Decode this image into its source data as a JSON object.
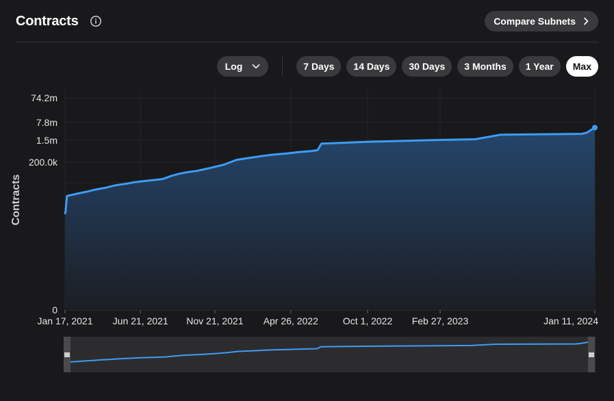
{
  "header": {
    "title": "Contracts",
    "compare_label": "Compare Subnets"
  },
  "controls": {
    "scale_selected": "Log",
    "ranges": [
      "7 Days",
      "14 Days",
      "30 Days",
      "3 Months",
      "1 Year",
      "Max"
    ],
    "active_range": "Max"
  },
  "colors": {
    "background": "#19191b",
    "line": "#3d9df6",
    "area_top": "#24466c",
    "area_bottom": "#1c1e24",
    "pill": "#3a3a3d",
    "pill_active": "#ffffff"
  },
  "chart_data": {
    "type": "area",
    "scale": "log",
    "ylabel": "Contracts",
    "y_tick_labels": [
      "74.2m",
      "7.8m",
      "1.5m",
      "200.0k",
      "0"
    ],
    "y_tick_values": [
      74200000,
      7800000,
      1500000,
      200000,
      0
    ],
    "x_tick_labels": [
      "Jan 17, 2021",
      "Jun 21, 2021",
      "Nov 21, 2021",
      "Apr 26, 2022",
      "Oct 1, 2022",
      "Feb 27, 2023",
      "Jan 11, 2024"
    ],
    "x_tick_dates": [
      "2021-01-17",
      "2021-06-21",
      "2021-11-21",
      "2022-04-26",
      "2022-10-01",
      "2023-02-27",
      "2024-01-11"
    ],
    "grid": true,
    "series": [
      {
        "x": [
          "2021-01-17",
          "2021-01-18",
          "2021-01-21",
          "2021-02-01",
          "2021-02-15",
          "2021-03-01",
          "2021-03-20",
          "2021-04-10",
          "2021-05-01",
          "2021-05-20",
          "2021-06-10",
          "2021-06-21",
          "2021-07-15",
          "2021-08-05",
          "2021-08-25",
          "2021-09-10",
          "2021-09-25",
          "2021-10-15",
          "2021-11-05",
          "2021-11-21",
          "2021-12-10",
          "2022-01-05",
          "2022-02-01",
          "2022-03-01",
          "2022-03-20",
          "2022-04-20",
          "2022-05-10",
          "2022-06-05",
          "2022-06-20",
          "2022-06-28",
          "2022-10-01",
          "2023-02-27",
          "2023-05-10",
          "2023-07-01",
          "2023-12-15",
          "2023-12-25",
          "2024-01-11"
        ],
        "values": [
          1800,
          2000,
          9000,
          10000,
          11500,
          13000,
          16000,
          19000,
          24000,
          27000,
          32000,
          34000,
          38000,
          42000,
          58000,
          70000,
          80000,
          90000,
          110000,
          130000,
          160000,
          250000,
          300000,
          360000,
          400000,
          450000,
          500000,
          550000,
          600000,
          1100000,
          1300000,
          1550000,
          1650000,
          2500000,
          2700000,
          3000000,
          4800000
        ]
      }
    ]
  }
}
